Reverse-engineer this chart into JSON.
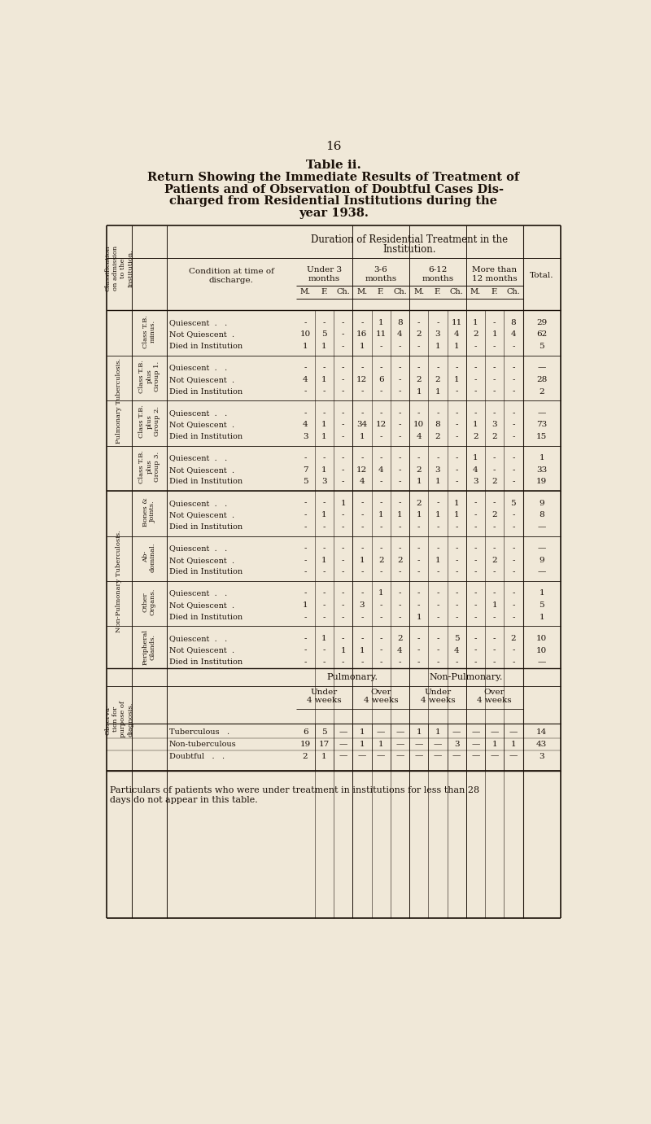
{
  "page_number": "16",
  "bg_color": "#f0e8d8",
  "text_color": "#1a1008",
  "title_line1": "Table ii.",
  "title_line2": "Return Showing the Immediate Results of Treatment of",
  "title_line3": "Patients and of Observation of Doubtful Cases Dis-",
  "title_line4": "charged from Residential Institutions during the",
  "title_line5": "year 1938.",
  "col_header_dur": "Duration of Residential Treatment in the Institution.",
  "col_header_cond": "Condition at time of\ndischarge.",
  "col_header_total": "Total.",
  "col_headers": [
    "Under 3\nmonths",
    "3-6\nmonths",
    "6-12\nmonths",
    "More than\n12 months"
  ],
  "mfc": [
    "M.",
    "F.",
    "Ch."
  ],
  "class_header": "Classification\non admission\nto the\nInstitution.",
  "pulm_label": "Pulmonary Tuberculosis.",
  "nonpulm_label": "Non-Pulmonary Tuberculosis.",
  "obs_label": "Observa-\ntion for\npurpose of\ndiagnosis.",
  "pulmonary_header": "Pulmonary.",
  "nonpulmonary_header": "Non-Pulmonary.",
  "under4": "Under\n4 weeks",
  "over4": "Over\n4 weeks",
  "footnote_line1": "Particulars of patients who were under treatment in institutions for less than 28",
  "footnote_line2": "days do not appear in this table.",
  "groups": [
    {
      "label": "Class T.B.\nminus.",
      "rows": [
        {
          "cond": "Quiescent  .   .",
          "vals": [
            "-",
            "-",
            "-",
            "-",
            "1",
            "8",
            "-",
            "-",
            "11",
            "1",
            "-",
            "8"
          ],
          "total": "29"
        },
        {
          "cond": "Not Quiescent  .",
          "vals": [
            "10",
            "5",
            "-",
            "16",
            "11",
            "4",
            "2",
            "3",
            "4",
            "2",
            "1",
            "4"
          ],
          "total": "62"
        },
        {
          "cond": "Died in Institution",
          "vals": [
            "1",
            "1",
            "-",
            "1",
            "-",
            "-",
            "-",
            "1",
            "1",
            "-",
            "-",
            "-"
          ],
          "total": "5"
        }
      ]
    },
    {
      "label": "Class T.B.\nplus\nGroup 1.",
      "rows": [
        {
          "cond": "Quiescent  .   .",
          "vals": [
            "-",
            "-",
            "-",
            "-",
            "-",
            "-",
            "-",
            "-",
            "-",
            "-",
            "-",
            "-"
          ],
          "total": "—"
        },
        {
          "cond": "Not Quiescent  .",
          "vals": [
            "4",
            "1",
            "-",
            "12",
            "6",
            "-",
            "2",
            "2",
            "1",
            "-",
            "-",
            "-"
          ],
          "total": "28"
        },
        {
          "cond": "Died in Institution",
          "vals": [
            "-",
            "-",
            "-",
            "-",
            "-",
            "-",
            "1",
            "1",
            "-",
            "-",
            "-",
            "-"
          ],
          "total": "2"
        }
      ]
    },
    {
      "label": "Class T.B.\nplus\nGroup 2.",
      "rows": [
        {
          "cond": "Quiescent  .   .",
          "vals": [
            "-",
            "-",
            "-",
            "-",
            "-",
            "-",
            "-",
            "-",
            "-",
            "-",
            "-",
            "-"
          ],
          "total": "—"
        },
        {
          "cond": "Not Quiescent  .",
          "vals": [
            "4",
            "1",
            "-",
            "34",
            "12",
            "-",
            "10",
            "8",
            "-",
            "1",
            "3",
            "-"
          ],
          "total": "73"
        },
        {
          "cond": "Died in Institution",
          "vals": [
            "3",
            "1",
            "-",
            "1",
            "-",
            "-",
            "4",
            "2",
            "-",
            "2",
            "2",
            "-"
          ],
          "total": "15"
        }
      ]
    },
    {
      "label": "Class T.B.\nplus\nGroup 3.",
      "rows": [
        {
          "cond": "Quiescent  .   .",
          "vals": [
            "-",
            "-",
            "-",
            "-",
            "-",
            "-",
            "-",
            "-",
            "-",
            "1",
            "-",
            "-"
          ],
          "total": "1"
        },
        {
          "cond": "Not Quiescent  .",
          "vals": [
            "7",
            "1",
            "-",
            "12",
            "4",
            "-",
            "2",
            "3",
            "-",
            "4",
            "-",
            "-"
          ],
          "total": "33"
        },
        {
          "cond": "Died in Institution",
          "vals": [
            "5",
            "3",
            "-",
            "4",
            "-",
            "-",
            "1",
            "1",
            "-",
            "3",
            "2",
            "-"
          ],
          "total": "19"
        }
      ]
    },
    {
      "label": "Bones &\nJoints.",
      "rows": [
        {
          "cond": "Quiescent  .   .",
          "vals": [
            "-",
            "-",
            "1",
            "-",
            "-",
            "-",
            "2",
            "-",
            "1",
            "-",
            "-",
            "5"
          ],
          "total": "9"
        },
        {
          "cond": "Not Quiescent  .",
          "vals": [
            "-",
            "1",
            "-",
            "-",
            "1",
            "1",
            "1",
            "1",
            "1",
            "-",
            "2",
            "-"
          ],
          "total": "8"
        },
        {
          "cond": "Died in Institution",
          "vals": [
            "-",
            "-",
            "-",
            "-",
            "-",
            "-",
            "-",
            "-",
            "-",
            "-",
            "-",
            "-"
          ],
          "total": "—"
        }
      ]
    },
    {
      "label": "Ab-\ndominal.",
      "rows": [
        {
          "cond": "Quiescent  .   .",
          "vals": [
            "-",
            "-",
            "-",
            "-",
            "-",
            "-",
            "-",
            "-",
            "-",
            "-",
            "-",
            "-"
          ],
          "total": "—"
        },
        {
          "cond": "Not Quiescent  .",
          "vals": [
            "-",
            "1",
            "-",
            "1",
            "2",
            "2",
            "-",
            "1",
            "-",
            "-",
            "2",
            "-"
          ],
          "total": "9"
        },
        {
          "cond": "Died in Institution",
          "vals": [
            "-",
            "-",
            "-",
            "-",
            "-",
            "-",
            "-",
            "-",
            "-",
            "-",
            "-",
            "-"
          ],
          "total": "—"
        }
      ]
    },
    {
      "label": "Other\nOrgans.",
      "rows": [
        {
          "cond": "Quiescent  .   .",
          "vals": [
            "-",
            "-",
            "-",
            "-",
            "1",
            "-",
            "-",
            "-",
            "-",
            "-",
            "-",
            "-"
          ],
          "total": "1"
        },
        {
          "cond": "Not Quiescent  .",
          "vals": [
            "1",
            "-",
            "-",
            "3",
            "-",
            "-",
            "-",
            "-",
            "-",
            "-",
            "1",
            "-"
          ],
          "total": "5"
        },
        {
          "cond": "Died in Institution",
          "vals": [
            "-",
            "-",
            "-",
            "-",
            "-",
            "-",
            "1",
            "-",
            "-",
            "-",
            "-",
            "-"
          ],
          "total": "1"
        }
      ]
    },
    {
      "label": "Peripheral\nGlands.",
      "rows": [
        {
          "cond": "Quiescent  .   .",
          "vals": [
            "-",
            "1",
            "-",
            "-",
            "-",
            "2",
            "-",
            "-",
            "5",
            "-",
            "-",
            "2"
          ],
          "total": "10"
        },
        {
          "cond": "Not Quiescent  .",
          "vals": [
            "-",
            "-",
            "1",
            "1",
            "-",
            "4",
            "-",
            "-",
            "4",
            "-",
            "-",
            "-"
          ],
          "total": "10"
        },
        {
          "cond": "Died in Institution",
          "vals": [
            "-",
            "-",
            "-",
            "-",
            "-",
            "-",
            "-",
            "-",
            "-",
            "-",
            "-",
            "-"
          ],
          "total": "—"
        }
      ]
    }
  ],
  "obs_rows": [
    {
      "label": "Tuberculous   .",
      "vals": [
        "6",
        "5",
        "—",
        "1",
        "—",
        "—",
        "1",
        "1",
        "—",
        "—",
        "—",
        "—"
      ],
      "total": "14"
    },
    {
      "label": "Non-tuberculous",
      "vals": [
        "19",
        "17",
        "—",
        "1",
        "1",
        "—",
        "—",
        "—",
        "3",
        "—",
        "1",
        "1"
      ],
      "total": "43"
    },
    {
      "label": "Doubtful   .   .",
      "vals": [
        "2",
        "1",
        "—",
        "—",
        "—",
        "—",
        "—",
        "—",
        "—",
        "—",
        "—",
        "—"
      ],
      "total": "3"
    }
  ]
}
